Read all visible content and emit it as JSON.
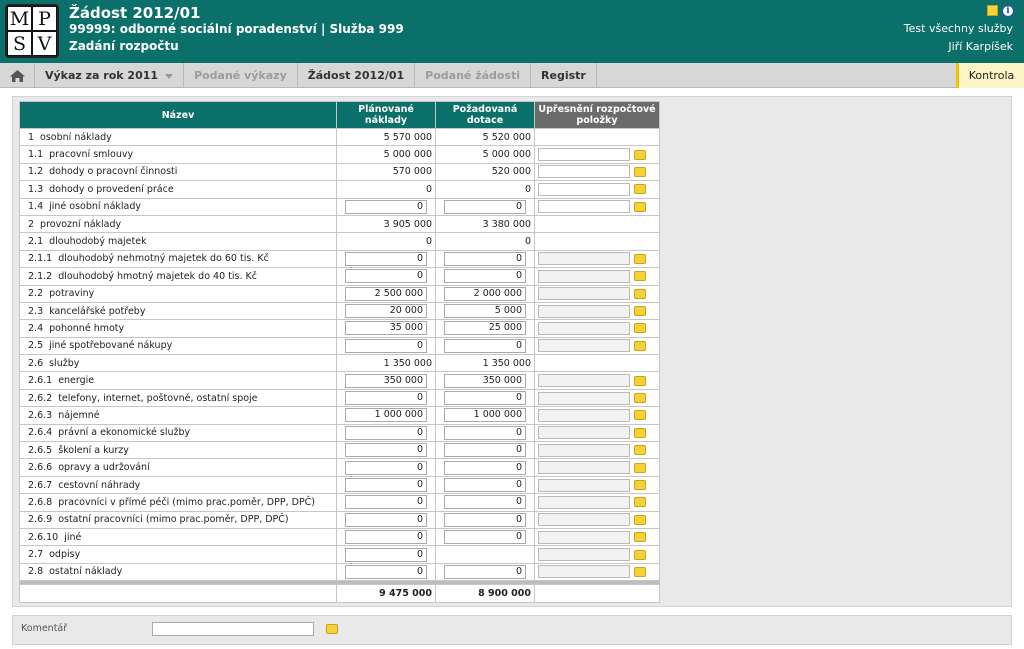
{
  "header": {
    "logo": [
      "M",
      "P",
      "S",
      "V"
    ],
    "title": "Žádost 2012/01",
    "subtitle": "99999: odborné sociální poradenství | Služba 999",
    "page": "Zadání rozpočtu",
    "service": "Test všechny služby",
    "user": "Jiří Karpíšek",
    "icons": [
      "note-icon",
      "info-icon"
    ]
  },
  "nav": {
    "items": [
      "Výkaz za rok 2011",
      "Podané výkazy",
      "Žádost 2012/01",
      "Podané žádosti",
      "Registr"
    ],
    "check": "Kontrola"
  },
  "table": {
    "headers": [
      "Název",
      "Plánované náklady",
      "Požadovaná dotace",
      "Upřesnění rozpočtové položky"
    ],
    "rows": [
      {
        "code": "1",
        "name": "osobní náklady",
        "planned": "5 570 000",
        "requested": "5 520 000"
      },
      {
        "code": "1.1",
        "name": "pracovní smlouvy",
        "planned": "5 000 000",
        "requested": "5 000 000"
      },
      {
        "code": "1.2",
        "name": "dohody o pracovní činnosti",
        "planned": "570 000",
        "requested": "520 000"
      },
      {
        "code": "1.3",
        "name": "dohody o provedení práce",
        "planned": "0",
        "requested": "0"
      },
      {
        "code": "1.4",
        "name": "jiné osobní náklady",
        "planned": "0",
        "requested": "0"
      },
      {
        "code": "2",
        "name": "provozní náklady",
        "planned": "3 905 000",
        "requested": "3 380 000"
      },
      {
        "code": "2.1",
        "name": "dlouhodobý majetek",
        "planned": "0",
        "requested": "0"
      },
      {
        "code": "2.1.1",
        "name": "dlouhodobý nehmotný majetek do 60 tis. Kč",
        "planned": "0",
        "requested": "0"
      },
      {
        "code": "2.1.2",
        "name": "dlouhodobý hmotný majetek do 40 tis. Kč",
        "planned": "0",
        "requested": "0"
      },
      {
        "code": "2.2",
        "name": "potraviny",
        "planned": "2 500 000",
        "requested": "2 000 000"
      },
      {
        "code": "2.3",
        "name": "kancelářské potřeby",
        "planned": "20 000",
        "requested": "5 000"
      },
      {
        "code": "2.4",
        "name": "pohonné hmoty",
        "planned": "35 000",
        "requested": "25 000"
      },
      {
        "code": "2.5",
        "name": "jiné spotřebované nákupy",
        "planned": "0",
        "requested": "0"
      },
      {
        "code": "2.6",
        "name": "služby",
        "planned": "1 350 000",
        "requested": "1 350 000"
      },
      {
        "code": "2.6.1",
        "name": "energie",
        "planned": "350 000",
        "requested": "350 000"
      },
      {
        "code": "2.6.2",
        "name": "telefony, internet, poštovné, ostatní spoje",
        "planned": "0",
        "requested": "0"
      },
      {
        "code": "2.6.3",
        "name": "nájemné",
        "planned": "1 000 000",
        "requested": "1 000 000"
      },
      {
        "code": "2.6.4",
        "name": "právní a ekonomické služby",
        "planned": "0",
        "requested": "0"
      },
      {
        "code": "2.6.5",
        "name": "školení a kurzy",
        "planned": "0",
        "requested": "0"
      },
      {
        "code": "2.6.6",
        "name": "opravy a udržování",
        "planned": "0",
        "requested": "0"
      },
      {
        "code": "2.6.7",
        "name": "cestovní náhrady",
        "planned": "0",
        "requested": "0"
      },
      {
        "code": "2.6.8",
        "name": "pracovníci v přímé péči (mimo prac.poměr, DPP, DPČ)",
        "planned": "0",
        "requested": "0"
      },
      {
        "code": "2.6.9",
        "name": "ostatní pracovníci (mimo prac.poměr, DPP, DPČ)",
        "planned": "0",
        "requested": "0"
      },
      {
        "code": "2.6.10",
        "name": "jiné",
        "planned": "0",
        "requested": "0"
      },
      {
        "code": "2.7",
        "name": "odpisy",
        "planned": "0",
        "requested": ""
      },
      {
        "code": "2.8",
        "name": "ostatní náklady",
        "planned": "0",
        "requested": "0"
      }
    ],
    "total_planned": "9 475 000",
    "total_requested": "8 900 000"
  },
  "comment": {
    "label": "Komentář"
  }
}
